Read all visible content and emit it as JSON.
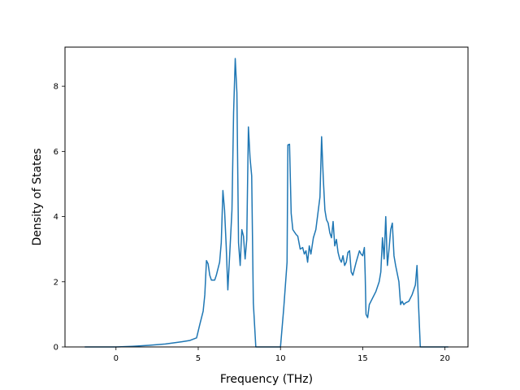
{
  "chart_data": {
    "type": "line",
    "title": "",
    "xlabel": "Frequency (THz)",
    "ylabel": "Density of States",
    "xlim": [
      -3.1,
      21.4
    ],
    "ylim": [
      0,
      9.2
    ],
    "xticks": [
      0,
      5,
      10,
      15,
      20
    ],
    "yticks": [
      0,
      2,
      4,
      6,
      8
    ],
    "grid": false,
    "legend": "none",
    "series": [
      {
        "color": "#1f77b4",
        "x": [
          -1.9,
          0,
          1.0,
          2.0,
          3.0,
          4.0,
          4.5,
          4.9,
          5.1,
          5.3,
          5.4,
          5.5,
          5.6,
          5.7,
          5.8,
          5.9,
          6.0,
          6.1,
          6.3,
          6.4,
          6.5,
          6.6,
          6.7,
          6.8,
          6.95,
          7.05,
          7.15,
          7.25,
          7.35,
          7.45,
          7.55,
          7.65,
          7.75,
          7.85,
          7.95,
          8.05,
          8.15,
          8.25,
          8.35,
          8.5,
          9.0,
          10.0,
          10.2,
          10.4,
          10.45,
          10.55,
          10.65,
          10.75,
          10.95,
          11.05,
          11.2,
          11.35,
          11.45,
          11.55,
          11.65,
          11.75,
          11.85,
          12.0,
          12.15,
          12.3,
          12.4,
          12.5,
          12.6,
          12.7,
          12.8,
          12.9,
          13.0,
          13.1,
          13.2,
          13.3,
          13.4,
          13.5,
          13.6,
          13.7,
          13.8,
          13.9,
          14.0,
          14.1,
          14.2,
          14.3,
          14.4,
          14.5,
          14.6,
          14.8,
          14.9,
          15.0,
          15.1,
          15.15,
          15.2,
          15.3,
          15.4,
          15.6,
          15.8,
          16.0,
          16.1,
          16.2,
          16.3,
          16.4,
          16.5,
          16.6,
          16.7,
          16.8,
          16.9,
          17.0,
          17.2,
          17.3,
          17.4,
          17.5,
          17.6,
          17.8,
          18.0,
          18.2,
          18.3,
          18.4,
          18.5,
          18.6,
          19.0,
          20.2
        ],
        "y": [
          0,
          0,
          0.02,
          0.05,
          0.09,
          0.16,
          0.2,
          0.28,
          0.7,
          1.1,
          1.6,
          2.65,
          2.55,
          2.2,
          2.05,
          2.05,
          2.05,
          2.2,
          2.6,
          3.2,
          4.8,
          4.2,
          3.1,
          1.75,
          3.2,
          4.2,
          7.2,
          8.85,
          7.8,
          3.2,
          2.5,
          3.6,
          3.4,
          2.7,
          3.3,
          6.75,
          5.8,
          5.25,
          1.35,
          0,
          0,
          0,
          1.2,
          2.6,
          6.2,
          6.22,
          4.1,
          3.6,
          3.45,
          3.4,
          3.0,
          3.05,
          2.85,
          2.95,
          2.6,
          3.1,
          2.85,
          3.35,
          3.6,
          4.2,
          4.6,
          6.45,
          5.2,
          4.2,
          3.9,
          3.8,
          3.5,
          3.35,
          3.85,
          3.1,
          3.3,
          2.9,
          2.7,
          2.6,
          2.8,
          2.5,
          2.6,
          2.9,
          2.95,
          2.3,
          2.2,
          2.4,
          2.6,
          2.95,
          2.85,
          2.8,
          3.05,
          2.2,
          1.0,
          0.9,
          1.3,
          1.5,
          1.7,
          2.0,
          2.3,
          3.35,
          2.7,
          4.0,
          2.5,
          3.0,
          3.6,
          3.8,
          2.8,
          2.5,
          2.0,
          1.3,
          1.4,
          1.3,
          1.35,
          1.4,
          1.6,
          1.9,
          2.5,
          1.2,
          0,
          0,
          0,
          0
        ]
      }
    ]
  }
}
